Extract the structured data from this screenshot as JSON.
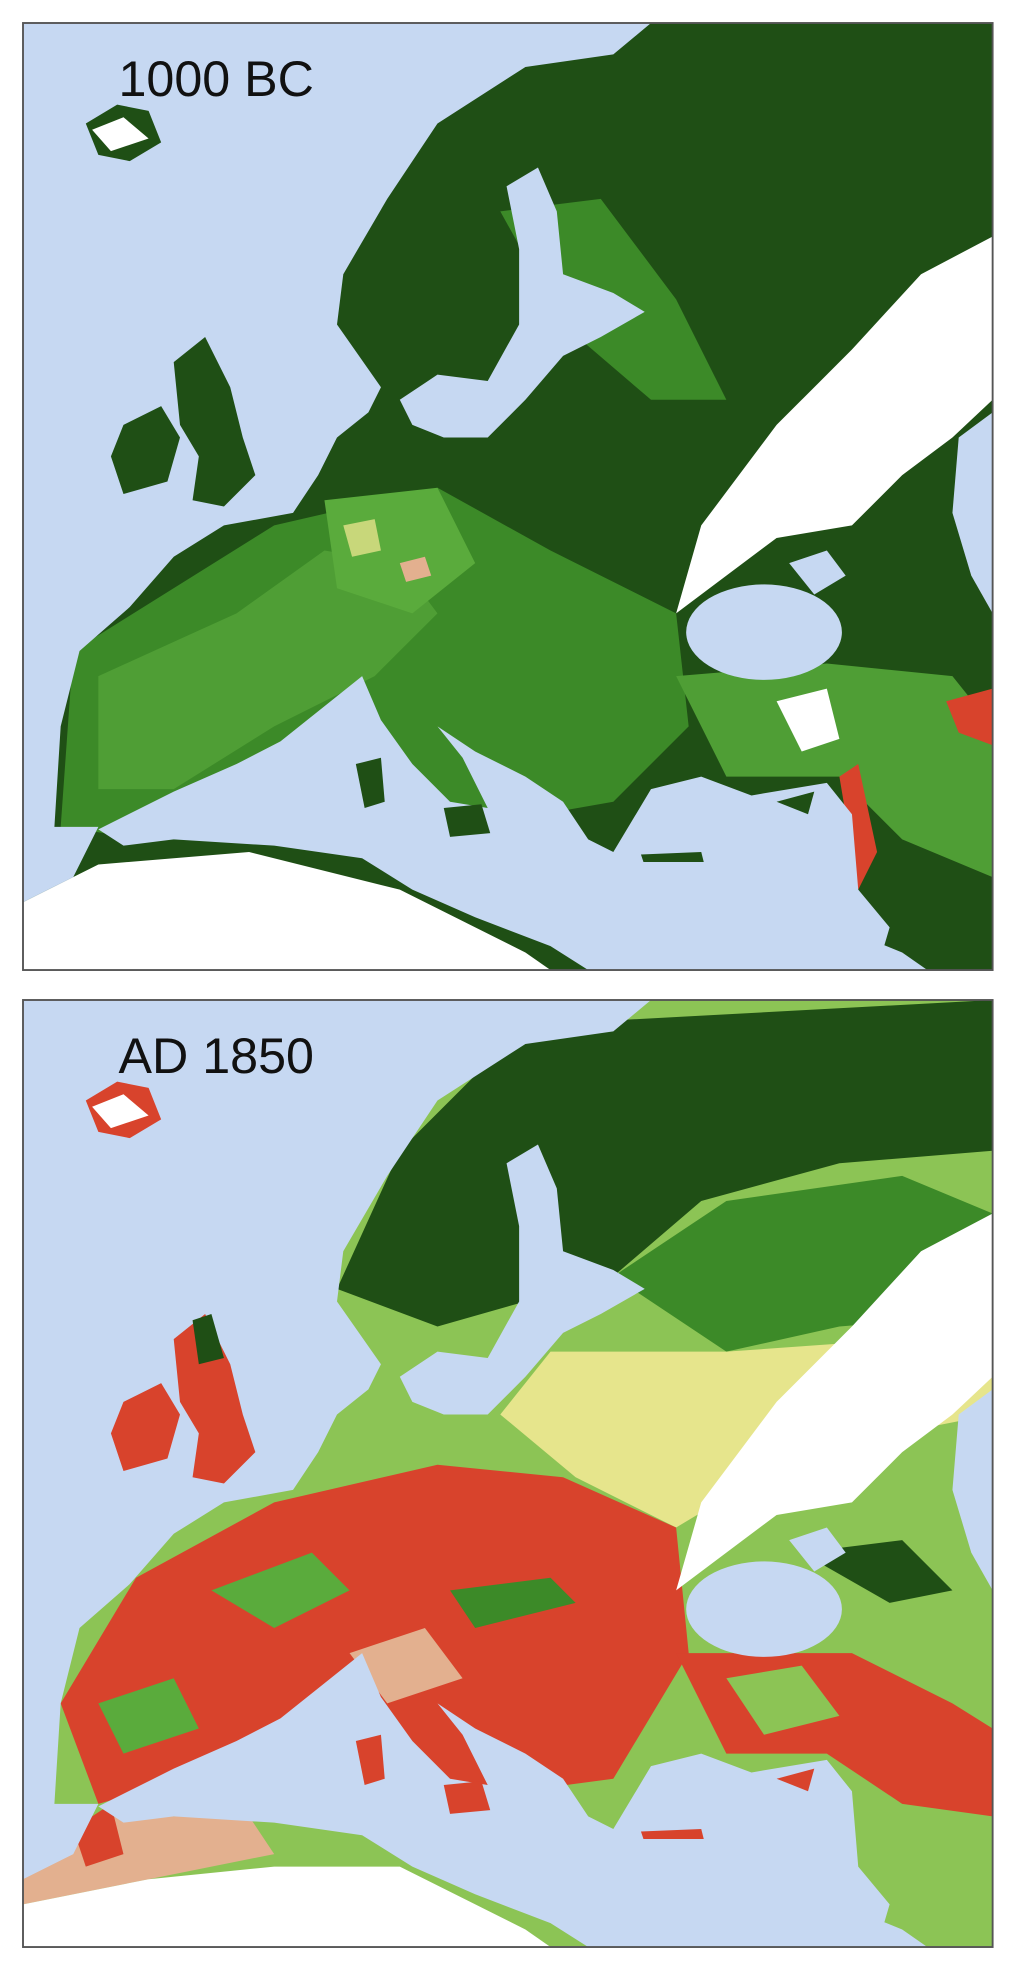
{
  "panels": [
    {
      "label": "1000 BC"
    },
    {
      "label": "AD 1850"
    }
  ]
}
